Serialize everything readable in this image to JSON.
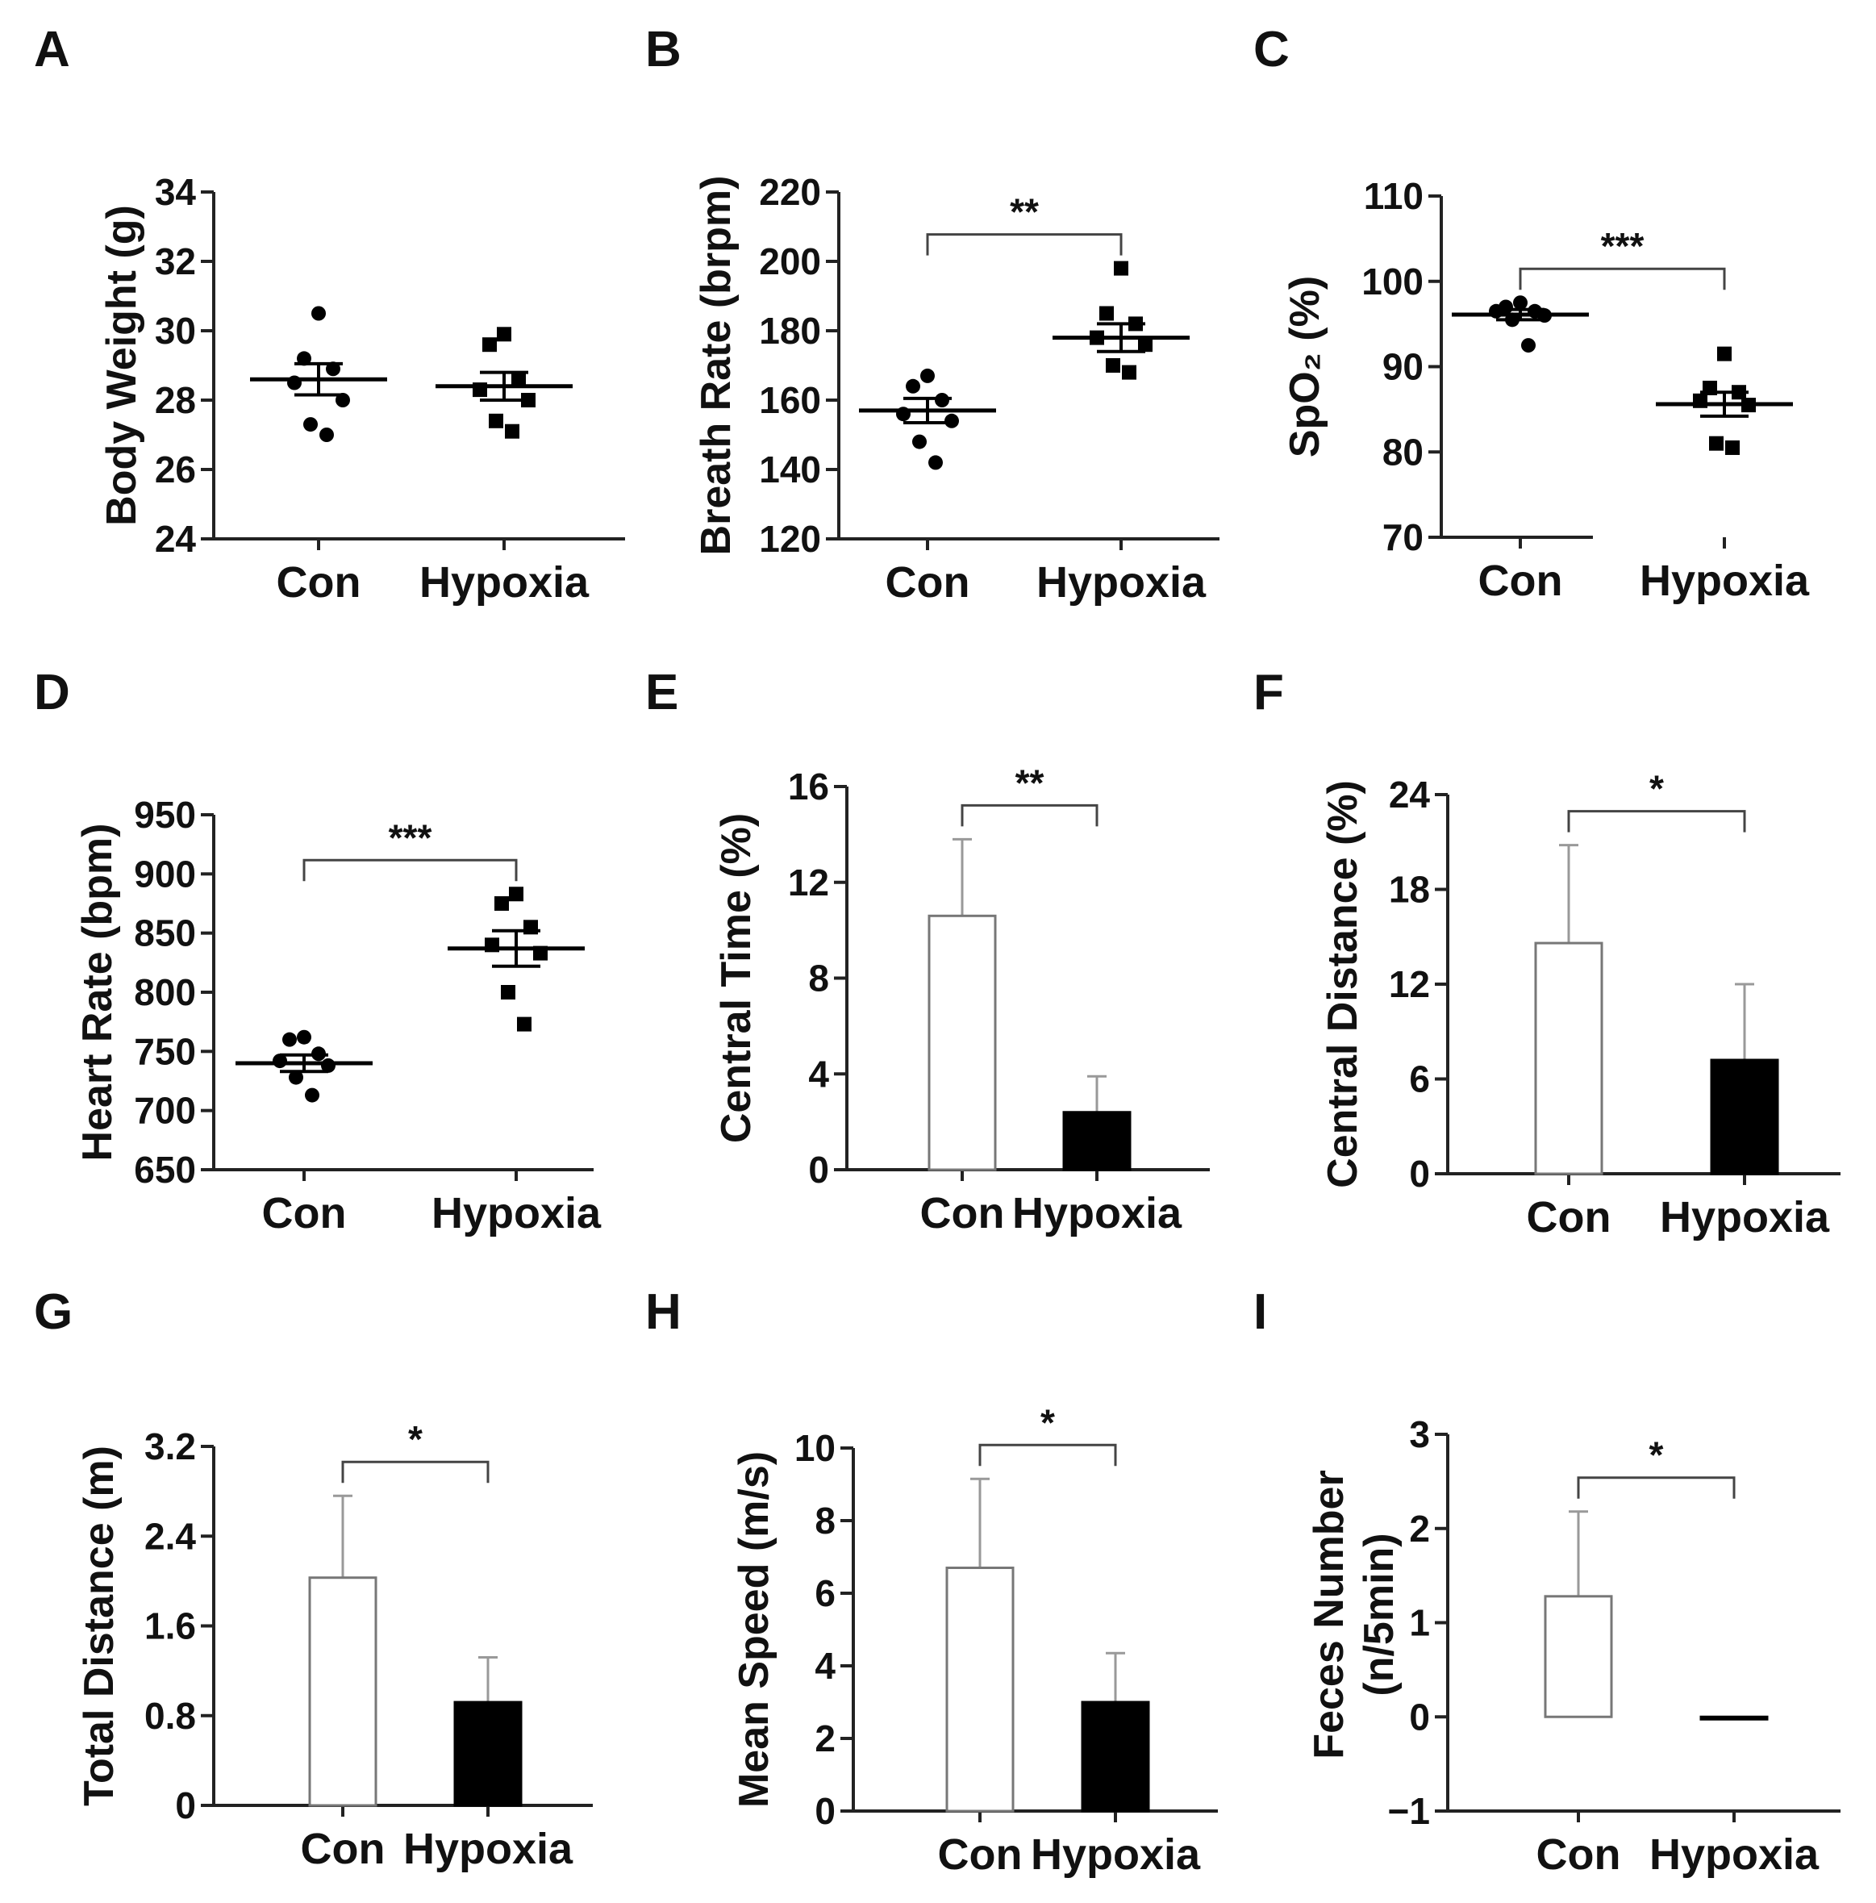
{
  "chart_data": [
    {
      "panel": "A",
      "type": "scatter",
      "ylabel": "Body Weight (g)",
      "categories": [
        "Con",
        "Hypoxia"
      ],
      "yticks": [
        "24",
        "26",
        "28",
        "30",
        "32",
        "34"
      ],
      "ylim": [
        24,
        34
      ],
      "points": [
        [
          30.5,
          29.2,
          28.9,
          28.5,
          28.0,
          27.3,
          27.0
        ],
        [
          29.9,
          29.6,
          28.6,
          28.3,
          28.0,
          27.4,
          27.1
        ]
      ],
      "mean": [
        28.6,
        28.4
      ],
      "sem": [
        0.45,
        0.4
      ],
      "sig": ""
    },
    {
      "panel": "B",
      "type": "scatter",
      "ylabel": "Breath Rate (brpm)",
      "categories": [
        "Con",
        "Hypoxia"
      ],
      "yticks": [
        "120",
        "140",
        "160",
        "180",
        "200",
        "220"
      ],
      "ylim": [
        120,
        220
      ],
      "points": [
        [
          167,
          164,
          160,
          156,
          154,
          148,
          142
        ],
        [
          198,
          185,
          182,
          178,
          176,
          170,
          168
        ]
      ],
      "mean": [
        157,
        178
      ],
      "sem": [
        3.5,
        4
      ],
      "sig": "**"
    },
    {
      "panel": "C",
      "type": "scatter",
      "ylabel": "SpO₂ (%)",
      "categories": [
        "Con",
        "Hypoxia"
      ],
      "yticks": [
        "70",
        "80",
        "90",
        "100",
        "110"
      ],
      "ylim": [
        70,
        110
      ],
      "points": [
        [
          97.5,
          97.0,
          96.5,
          96.5,
          96.0,
          95.5,
          92.5
        ],
        [
          91.5,
          87.5,
          87.0,
          86.0,
          85.5,
          81.0,
          80.5
        ]
      ],
      "mean": [
        96.1,
        85.6
      ],
      "sem": [
        0.6,
        1.4
      ],
      "sig": "***"
    },
    {
      "panel": "D",
      "type": "scatter",
      "ylabel": "Heart Rate (bpm)",
      "categories": [
        "Con",
        "Hypoxia"
      ],
      "yticks": [
        "650",
        "700",
        "750",
        "800",
        "850",
        "900",
        "950"
      ],
      "ylim": [
        650,
        950
      ],
      "points": [
        [
          762,
          760,
          748,
          742,
          738,
          728,
          713
        ],
        [
          883,
          875,
          855,
          840,
          833,
          800,
          773
        ]
      ],
      "mean": [
        740,
        837
      ],
      "sem": [
        7,
        15
      ],
      "sig": "***"
    },
    {
      "panel": "E",
      "type": "bar",
      "ylabel": "Central Time (%)",
      "categories": [
        "Con",
        "Hypoxia"
      ],
      "yticks": [
        "0",
        "4",
        "8",
        "12",
        "16"
      ],
      "ylim": [
        0,
        16
      ],
      "values": [
        10.6,
        2.4
      ],
      "errors": [
        3.2,
        1.5
      ],
      "fills": [
        "#ffffff",
        "#000000"
      ],
      "sig": "**"
    },
    {
      "panel": "F",
      "type": "bar",
      "ylabel": "Central Distance (%)",
      "categories": [
        "Con",
        "Hypoxia"
      ],
      "yticks": [
        "0",
        "6",
        "12",
        "18",
        "24"
      ],
      "ylim": [
        0,
        24
      ],
      "values": [
        14.6,
        7.2
      ],
      "errors": [
        6.2,
        4.8
      ],
      "fills": [
        "#ffffff",
        "#000000"
      ],
      "sig": "*"
    },
    {
      "panel": "G",
      "type": "bar",
      "ylabel": "Total Distance (m)",
      "categories": [
        "Con",
        "Hypoxia"
      ],
      "yticks": [
        "0",
        "0.8",
        "1.6",
        "2.4",
        "3.2"
      ],
      "ylim": [
        0,
        3.2
      ],
      "values": [
        2.03,
        0.92
      ],
      "errors": [
        0.73,
        0.4
      ],
      "fills": [
        "#ffffff",
        "#000000"
      ],
      "sig": "*"
    },
    {
      "panel": "H",
      "type": "bar",
      "ylabel": "Mean Speed (m/s)",
      "categories": [
        "Con",
        "Hypoxia"
      ],
      "yticks": [
        "0",
        "2",
        "4",
        "6",
        "8",
        "10"
      ],
      "ylim": [
        0,
        10
      ],
      "values": [
        6.7,
        3.0
      ],
      "errors": [
        2.45,
        1.35
      ],
      "fills": [
        "#ffffff",
        "#000000"
      ],
      "sig": "*"
    },
    {
      "panel": "I",
      "type": "bar",
      "ylabel": "Feces Number",
      "ylabel2": "(n/5min)",
      "categories": [
        "Con",
        "Hypoxia"
      ],
      "yticks": [
        "−1",
        "0",
        "1",
        "2",
        "3"
      ],
      "ylim": [
        -1,
        3
      ],
      "values": [
        1.28,
        0.0
      ],
      "errors": [
        0.9,
        0
      ],
      "fills": [
        "#ffffff",
        "#000000"
      ],
      "sig": "*"
    }
  ]
}
